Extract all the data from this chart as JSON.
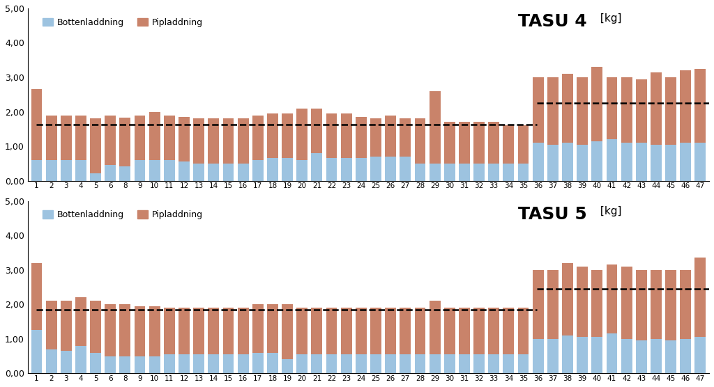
{
  "chart1_title": "TASU 4",
  "chart2_title": "TASU 5",
  "title_unit": "[kg]",
  "legend_bottom": "Bottenladdning",
  "legend_pipe": "Pipladdning",
  "color_bottom": "#9DC3E0",
  "color_pipe": "#C9836A",
  "ylim": [
    0,
    5.0
  ],
  "yticks": [
    0.0,
    1.0,
    2.0,
    3.0,
    4.0,
    5.0
  ],
  "yticklabels": [
    "0,00",
    "1,00",
    "2,00",
    "3,00",
    "4,00",
    "5,00"
  ],
  "x_labels": [
    "1",
    "2",
    "3",
    "4",
    "5",
    "6",
    "8",
    "9",
    "10",
    "11",
    "12",
    "13",
    "14",
    "15",
    "16",
    "17",
    "18",
    "19",
    "20",
    "21",
    "22",
    "23",
    "24",
    "25",
    "26",
    "27",
    "28",
    "29",
    "30",
    "31",
    "32",
    "33",
    "34",
    "35",
    "36",
    "37",
    "38",
    "39",
    "40",
    "41",
    "42",
    "43",
    "44",
    "45",
    "46",
    "47"
  ],
  "chart1_bottom": [
    0.6,
    0.6,
    0.6,
    0.6,
    0.22,
    0.45,
    0.42,
    0.6,
    0.6,
    0.6,
    0.55,
    0.5,
    0.5,
    0.5,
    0.5,
    0.6,
    0.65,
    0.65,
    0.6,
    0.8,
    0.65,
    0.65,
    0.65,
    0.7,
    0.7,
    0.7,
    0.5,
    0.5,
    0.5,
    0.5,
    0.5,
    0.5,
    0.5,
    0.5,
    1.1,
    1.05,
    1.1,
    1.05,
    1.15,
    1.2,
    1.1,
    1.1,
    1.05,
    1.05,
    1.1,
    1.1
  ],
  "chart1_pipe": [
    2.05,
    1.3,
    1.3,
    1.3,
    1.58,
    1.45,
    1.4,
    1.3,
    1.4,
    1.3,
    1.3,
    1.3,
    1.3,
    1.3,
    1.3,
    1.3,
    1.3,
    1.3,
    1.5,
    1.3,
    1.3,
    1.3,
    1.2,
    1.1,
    1.2,
    1.1,
    1.3,
    2.1,
    1.2,
    1.2,
    1.2,
    1.2,
    1.1,
    1.1,
    1.9,
    1.95,
    2.0,
    1.95,
    2.15,
    1.8,
    1.9,
    1.85,
    2.1,
    1.95,
    2.1,
    2.15
  ],
  "chart1_hline1": 1.62,
  "chart1_hline1_xstart": 0.5,
  "chart1_hline1_xend": 34.4,
  "chart1_hline2": 2.25,
  "chart1_hline2_xstart": 34.4,
  "chart1_hline2_xend": 45.5,
  "chart2_bottom": [
    1.25,
    0.7,
    0.65,
    0.8,
    0.6,
    0.5,
    0.5,
    0.5,
    0.5,
    0.55,
    0.55,
    0.55,
    0.55,
    0.55,
    0.55,
    0.6,
    0.6,
    0.4,
    0.55,
    0.55,
    0.55,
    0.55,
    0.55,
    0.55,
    0.55,
    0.55,
    0.55,
    0.55,
    0.55,
    0.55,
    0.55,
    0.55,
    0.55,
    0.55,
    1.0,
    1.0,
    1.1,
    1.05,
    1.05,
    1.15,
    1.0,
    0.95,
    1.0,
    0.95,
    1.0,
    1.05
  ],
  "chart2_pipe": [
    1.95,
    1.4,
    1.45,
    1.4,
    1.5,
    1.5,
    1.5,
    1.45,
    1.45,
    1.35,
    1.35,
    1.35,
    1.35,
    1.35,
    1.35,
    1.4,
    1.4,
    1.6,
    1.35,
    1.35,
    1.35,
    1.35,
    1.35,
    1.35,
    1.35,
    1.35,
    1.35,
    1.55,
    1.35,
    1.35,
    1.35,
    1.35,
    1.35,
    1.35,
    2.0,
    2.0,
    2.1,
    2.05,
    1.95,
    2.0,
    2.1,
    2.05,
    2.0,
    2.05,
    2.0,
    2.3
  ],
  "chart2_hline1": 1.85,
  "chart2_hline1_xstart": 0.5,
  "chart2_hline1_xend": 34.4,
  "chart2_hline2": 2.45,
  "chart2_hline2_xstart": 34.4,
  "chart2_hline2_xend": 45.5
}
